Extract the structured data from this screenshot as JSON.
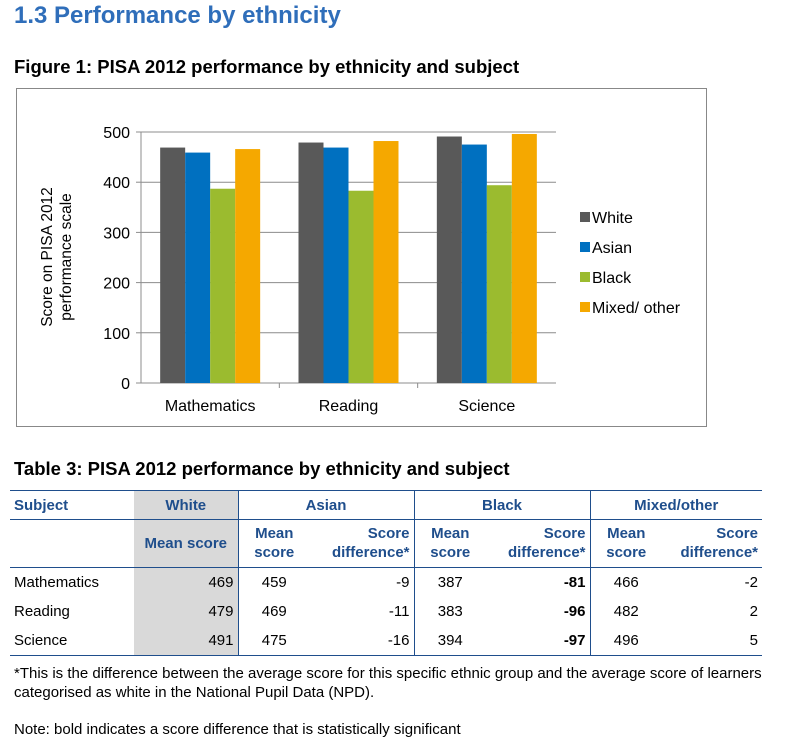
{
  "section_title": "1.3 Performance by ethnicity",
  "figure_title": "Figure 1: PISA 2012 performance by ethnicity and subject",
  "chart_data": {
    "type": "bar",
    "categories": [
      "Mathematics",
      "Reading",
      "Science"
    ],
    "series": [
      {
        "name": "White",
        "values": [
          469,
          479,
          491
        ],
        "color": "#595959"
      },
      {
        "name": "Asian",
        "values": [
          459,
          469,
          475
        ],
        "color": "#0070c0"
      },
      {
        "name": "Black",
        "values": [
          387,
          383,
          394
        ],
        "color": "#9bbb2f"
      },
      {
        "name": "Mixed/ other",
        "values": [
          466,
          482,
          496
        ],
        "color": "#f5a800"
      }
    ],
    "ylabel_lines": [
      "Score on PISA 2012",
      "performance scale"
    ],
    "ylim": [
      0,
      500
    ],
    "yticks": [
      0,
      100,
      200,
      300,
      400,
      500
    ],
    "grid": true,
    "legend": "right"
  },
  "table": {
    "title": "Table 3: PISA 2012 performance by ethnicity and subject",
    "headers": {
      "subject": "Subject",
      "white": "White",
      "asian": "Asian",
      "black": "Black",
      "mixed": "Mixed/other"
    },
    "subheaders": {
      "mean_score": "Mean score",
      "mean": "Mean",
      "score": "score",
      "score_word": "Score",
      "difference": "difference*"
    },
    "rows": [
      {
        "subject": "Mathematics",
        "white": "469",
        "asian_mean": "459",
        "asian_diff": "-9",
        "black_mean": "387",
        "black_diff": "-81",
        "mixed_mean": "466",
        "mixed_diff": "-2"
      },
      {
        "subject": "Reading",
        "white": "479",
        "asian_mean": "469",
        "asian_diff": "-11",
        "black_mean": "383",
        "black_diff": "-96",
        "mixed_mean": "482",
        "mixed_diff": "2"
      },
      {
        "subject": "Science",
        "white": "491",
        "asian_mean": "475",
        "asian_diff": "-16",
        "black_mean": "394",
        "black_diff": "-97",
        "mixed_mean": "496",
        "mixed_diff": "5"
      }
    ]
  },
  "footnote": "*This is the difference between the average score for this specific ethnic group and the average score of learners categorised as white in the National Pupil Data (NPD).",
  "note": "Note: bold indicates a score difference that is statistically significant"
}
